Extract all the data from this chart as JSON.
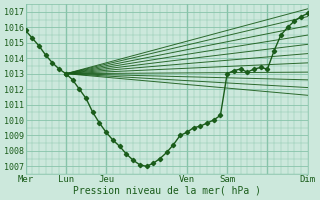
{
  "xlabel": "Pression niveau de la mer( hPa )",
  "bg_color": "#cce8dc",
  "grid_color": "#88c4aa",
  "line_color": "#1a5c1a",
  "xlim": [
    0,
    168
  ],
  "ylim": [
    1006.5,
    1017.5
  ],
  "yticks": [
    1007,
    1008,
    1009,
    1010,
    1011,
    1012,
    1013,
    1014,
    1015,
    1016,
    1017
  ],
  "day_vlines": [
    0,
    24,
    48,
    96,
    120,
    144,
    168
  ],
  "xtick_pos": [
    0,
    24,
    48,
    96,
    120,
    144,
    168
  ],
  "xtick_lab": [
    "Mer",
    "Lun",
    "Jeu",
    "Ven",
    "Sam",
    "",
    "Dim"
  ],
  "fan_origin_x": 24,
  "fan_origin_y": 1013.0,
  "fan_endpoints": [
    [
      168,
      1017.2
    ],
    [
      168,
      1016.7
    ],
    [
      168,
      1016.1
    ],
    [
      168,
      1015.5
    ],
    [
      168,
      1014.9
    ],
    [
      168,
      1014.3
    ],
    [
      168,
      1013.7
    ],
    [
      168,
      1013.1
    ],
    [
      168,
      1012.6
    ],
    [
      168,
      1012.1
    ],
    [
      168,
      1011.6
    ]
  ],
  "obs_x": [
    0,
    4,
    8,
    12,
    16,
    20,
    24
  ],
  "obs_y": [
    1015.8,
    1015.3,
    1014.8,
    1014.2,
    1013.7,
    1013.3,
    1013.0
  ],
  "detail_x": [
    24,
    28,
    32,
    36,
    40,
    44,
    48,
    52,
    56,
    60,
    64,
    68,
    72,
    76,
    80,
    84,
    88,
    92,
    96,
    100,
    104,
    108,
    112,
    116,
    120,
    124,
    128,
    132,
    136,
    140,
    144,
    148,
    152,
    156,
    160,
    164,
    168
  ],
  "detail_y": [
    1013.0,
    1012.6,
    1012.0,
    1011.4,
    1010.5,
    1009.8,
    1009.2,
    1008.7,
    1008.3,
    1007.8,
    1007.4,
    1007.1,
    1007.0,
    1007.2,
    1007.5,
    1007.9,
    1008.4,
    1009.0,
    1009.2,
    1009.5,
    1009.6,
    1009.8,
    1010.0,
    1010.3,
    1013.0,
    1013.2,
    1013.3,
    1013.1,
    1013.3,
    1013.4,
    1013.3,
    1014.5,
    1015.5,
    1016.0,
    1016.4,
    1016.7,
    1016.9
  ]
}
